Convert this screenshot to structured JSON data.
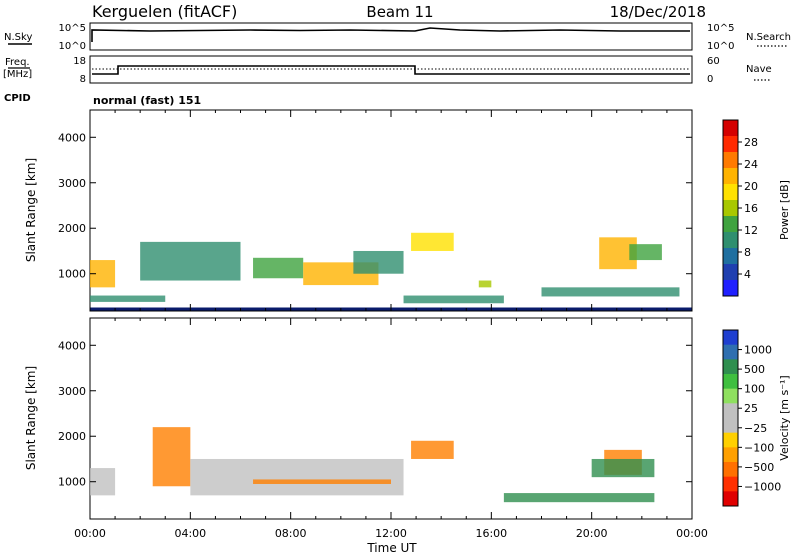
{
  "header": {
    "station": "Kerguelen (fitACF)",
    "beam": "Beam 11",
    "date": "18/Dec/2018"
  },
  "noise_panel": {
    "left_label": "N.Sky",
    "left_ticks": [
      "10^5",
      "10^0"
    ],
    "right_label": "N.Search",
    "right_ticks": [
      "10^5",
      "10^0"
    ]
  },
  "freq_panel": {
    "left_label_1": "Freq.",
    "left_label_2": "[MHz]",
    "left_ticks": [
      "18",
      "8"
    ],
    "right_label": "Nave",
    "right_ticks": [
      "60",
      "0"
    ],
    "cpid_label": "CPID",
    "cpid_text": "normal (fast) 151"
  },
  "power_colorbar": {
    "label": "Power [dB]",
    "ticks": [
      "28",
      "24",
      "20",
      "16",
      "12",
      "8",
      "4"
    ],
    "colors": [
      "#d40000",
      "#ff2a00",
      "#ff7a00",
      "#ffb300",
      "#ffe100",
      "#a8c800",
      "#3fa33f",
      "#2f8f6f",
      "#1f6fa0",
      "#1f3fb0",
      "#2020ff"
    ]
  },
  "velocity_colorbar": {
    "label": "Velocity [m s⁻¹]",
    "ticks": [
      "1000",
      "500",
      "100",
      "25",
      "−25",
      "−100",
      "−500",
      "−1000"
    ],
    "colors": [
      "#1f3fd0",
      "#2f6fb0",
      "#2f8f4f",
      "#3fbf3f",
      "#8fe05f",
      "#c0c0c0",
      "#c0c0c0",
      "#ffd000",
      "#ffa000",
      "#ff7000",
      "#ff3000",
      "#e00000"
    ]
  },
  "chart_data": [
    {
      "type": "heatmap",
      "title": "Kerguelen (fitACF) Beam 11 18/Dec/2018",
      "ylabel": "Slant Range [km]",
      "xlabel": "Time UT",
      "x_ticks": [
        "00:00",
        "04:00",
        "08:00",
        "12:00",
        "16:00",
        "20:00",
        "00:00"
      ],
      "y_ticks": [
        1000,
        2000,
        3000,
        4000
      ],
      "xlim": [
        0,
        24
      ],
      "ylim": [
        180,
        4600
      ],
      "colorbar": "Power [dB]",
      "regions": [
        {
          "t0": 0.0,
          "t1": 1.0,
          "r0": 700,
          "r1": 1300,
          "level": 22
        },
        {
          "t0": 0.0,
          "t1": 3.0,
          "r0": 380,
          "r1": 520,
          "level": 10
        },
        {
          "t0": 2.0,
          "t1": 6.0,
          "r0": 850,
          "r1": 1700,
          "level": 8
        },
        {
          "t0": 6.5,
          "t1": 8.5,
          "r0": 900,
          "r1": 1350,
          "level": 12
        },
        {
          "t0": 8.5,
          "t1": 11.5,
          "r0": 750,
          "r1": 1250,
          "level": 22
        },
        {
          "t0": 10.5,
          "t1": 12.5,
          "r0": 1000,
          "r1": 1500,
          "level": 10
        },
        {
          "t0": 12.8,
          "t1": 14.5,
          "r0": 1500,
          "r1": 1900,
          "level": 18
        },
        {
          "t0": 12.5,
          "t1": 16.5,
          "r0": 350,
          "r1": 520,
          "level": 10
        },
        {
          "t0": 15.5,
          "t1": 16.0,
          "r0": 700,
          "r1": 850,
          "level": 14
        },
        {
          "t0": 18.0,
          "t1": 23.5,
          "r0": 500,
          "r1": 700,
          "level": 10
        },
        {
          "t0": 20.3,
          "t1": 21.8,
          "r0": 1100,
          "r1": 1800,
          "level": 22
        },
        {
          "t0": 21.5,
          "t1": 22.8,
          "r0": 1300,
          "r1": 1650,
          "level": 12
        }
      ]
    },
    {
      "type": "heatmap",
      "ylabel": "Slant Range [km]",
      "xlabel": "Time UT",
      "x_ticks": [
        "00:00",
        "04:00",
        "08:00",
        "12:00",
        "16:00",
        "20:00",
        "00:00"
      ],
      "y_ticks": [
        1000,
        2000,
        3000,
        4000
      ],
      "xlim": [
        0,
        24
      ],
      "ylim": [
        180,
        4600
      ],
      "colorbar": "Velocity [m s⁻¹]",
      "regions": [
        {
          "t0": 0.0,
          "t1": 1.0,
          "r0": 700,
          "r1": 1300,
          "velocity": 0
        },
        {
          "t0": 2.5,
          "t1": 4.0,
          "r0": 900,
          "r1": 2200,
          "velocity": -200
        },
        {
          "t0": 4.0,
          "t1": 12.5,
          "r0": 700,
          "r1": 1500,
          "velocity": 0
        },
        {
          "t0": 6.5,
          "t1": 12.0,
          "r0": 950,
          "r1": 1050,
          "velocity": -150
        },
        {
          "t0": 12.8,
          "t1": 14.5,
          "r0": 1500,
          "r1": 1900,
          "velocity": -100
        },
        {
          "t0": 16.5,
          "t1": 22.5,
          "r0": 550,
          "r1": 750,
          "velocity": 150
        },
        {
          "t0": 20.5,
          "t1": 22.0,
          "r0": 1150,
          "r1": 1700,
          "velocity": -300
        },
        {
          "t0": 20.0,
          "t1": 22.5,
          "r0": 1100,
          "r1": 1500,
          "velocity": 300
        }
      ]
    }
  ]
}
